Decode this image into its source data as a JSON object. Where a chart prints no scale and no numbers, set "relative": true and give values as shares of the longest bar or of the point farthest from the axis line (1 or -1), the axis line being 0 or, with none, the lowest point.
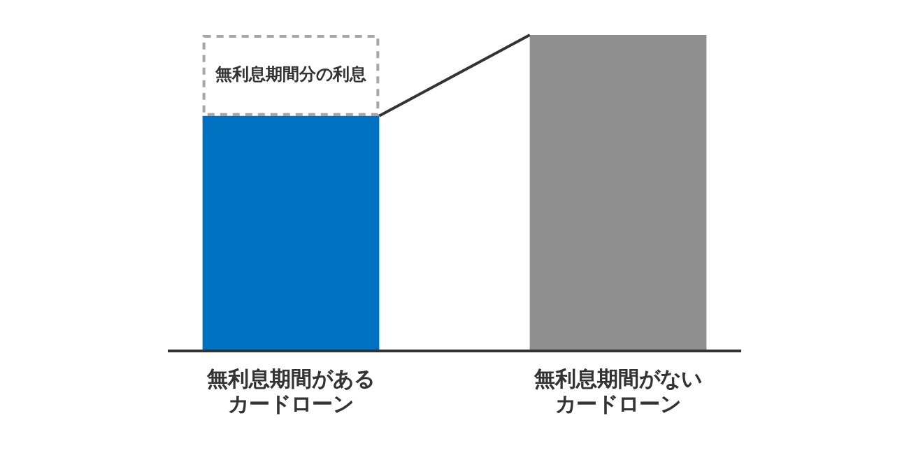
{
  "chart_data": {
    "type": "bar",
    "relative": true,
    "stacked": true,
    "categories": [
      "無利息期間があるカードローン",
      "無利息期間がないカードローン"
    ],
    "series": [
      {
        "colors": [
          "#0070c0",
          "#8f8f8f"
        ],
        "values": [
          0.744,
          1
        ]
      },
      {
        "color": "#a6a6a6",
        "line_style": "dashed",
        "values": [
          0.256,
          null
        ]
      }
    ],
    "annotations": [
      "無利息期間分の利息"
    ],
    "legend": false,
    "grid": false
  }
}
